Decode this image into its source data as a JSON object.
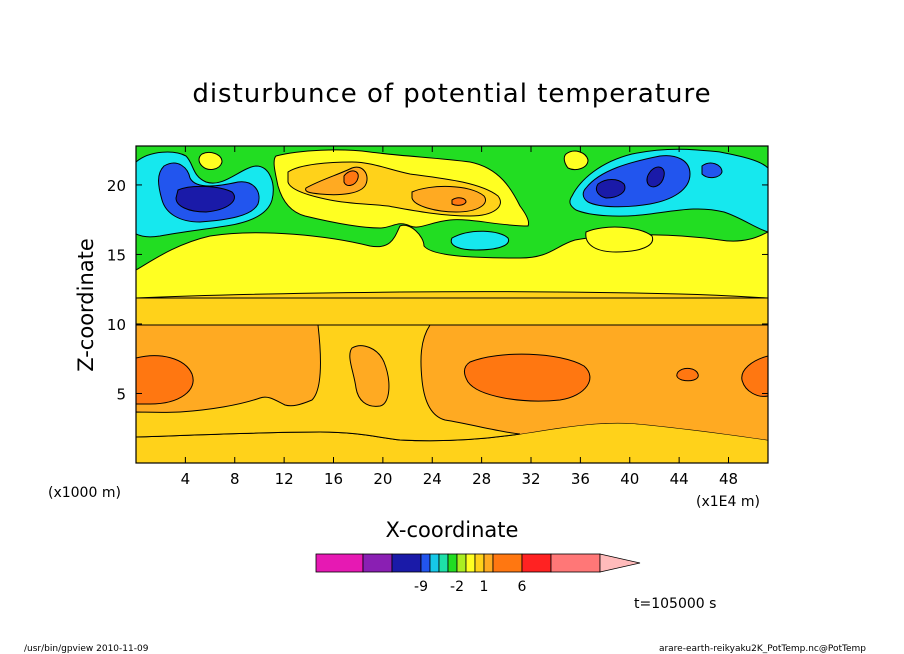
{
  "chart_data": {
    "type": "heatmap",
    "title": "disturbunce of potential temperature",
    "xlabel": "X-coordinate",
    "ylabel": "Z-coordinate",
    "x_unit_left": "(x1000 m)",
    "x_unit_right": "(x1E4 m)",
    "xlim": [
      0,
      51.2
    ],
    "ylim": [
      0,
      22.8
    ],
    "x_ticks": [
      4,
      8,
      12,
      16,
      20,
      24,
      28,
      32,
      36,
      40,
      44,
      48
    ],
    "y_ticks": [
      5,
      10,
      15,
      20
    ],
    "colorbar": {
      "colors": [
        "#e619b3",
        "#8a1fb3",
        "#1a1aa8",
        "#2255ee",
        "#16c8e8",
        "#1ee0a8",
        "#22dd22",
        "#aaee22",
        "#ffff22",
        "#ffd21a",
        "#ffaa22",
        "#ff7711",
        "#ff2222",
        "#ff7777",
        "#ffbbbb"
      ],
      "labels": [
        {
          "text": "-9",
          "index": 2
        },
        {
          "text": "-2",
          "index": 6
        },
        {
          "text": "1",
          "index": 9
        },
        {
          "text": "6",
          "index": 12
        }
      ]
    },
    "time_label": "t=105000 s",
    "footer_left": "/usr/bin/gpview  2010-11-09",
    "footer_right": "arare-earth-reikyaku2K_PotTemp.nc@PotTemp",
    "levels": [
      {
        "name": "cold-cell-left",
        "color": "#1a1aa8",
        "x": 6.0,
        "z": 19.3
      },
      {
        "name": "cold-cell-right",
        "color": "#1a1aa8",
        "x": 38.8,
        "z": 19.6
      },
      {
        "name": "warm-cell-mid",
        "color": "#ff7711",
        "x": 30.5,
        "z": 6.2
      },
      {
        "name": "warm-cell-left",
        "color": "#ff7711",
        "x": 2.0,
        "z": 6.2
      }
    ]
  }
}
